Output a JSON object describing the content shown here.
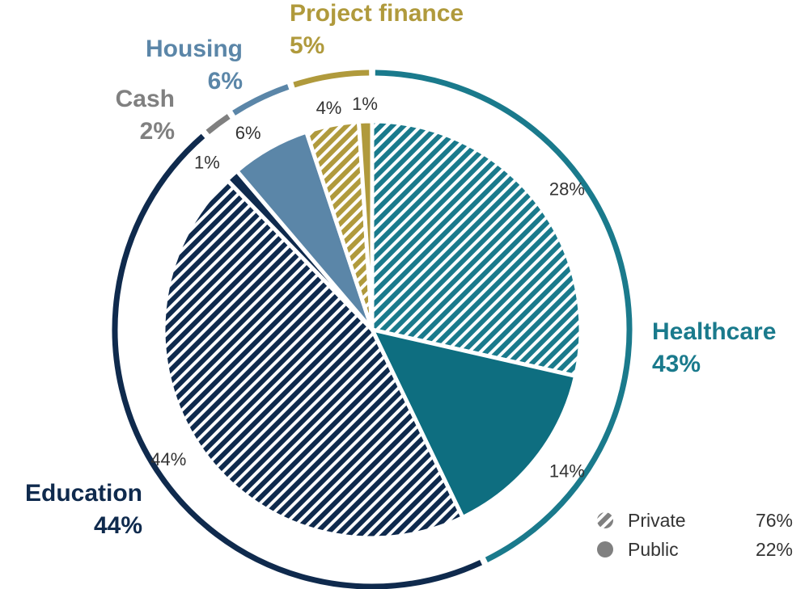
{
  "chart_data": {
    "type": "pie",
    "categories": [
      {
        "id": "healthcare",
        "name": "Healthcare",
        "percent_label": "43%",
        "color": "#1a7a8c"
      },
      {
        "id": "education",
        "name": "Education",
        "percent_label": "44%",
        "color": "#0f2a4d"
      },
      {
        "id": "cash",
        "name": "Cash",
        "percent_label": "2%",
        "color": "#808080"
      },
      {
        "id": "housing",
        "name": "Housing",
        "percent_label": "6%",
        "color": "#5b86a8"
      },
      {
        "id": "project-finance",
        "name": "Project finance",
        "percent_label": "5%",
        "color": "#b09a3c"
      }
    ],
    "slices": [
      {
        "category": "healthcare",
        "type": "private",
        "value": 28,
        "label": "28%",
        "color": "#1a7a8c"
      },
      {
        "category": "healthcare",
        "type": "public",
        "value": 14,
        "label": "14%",
        "color": "#0e6e80"
      },
      {
        "category": "education",
        "type": "private",
        "value": 44,
        "label": "44%",
        "color": "#0f2a4d"
      },
      {
        "category": "education",
        "type": "public",
        "value": 1,
        "label": "1%",
        "color": "#0f2a4d"
      },
      {
        "category": "housing",
        "type": "public",
        "value": 6,
        "label": "6%",
        "color": "#5b86a8"
      },
      {
        "category": "project-finance",
        "type": "private",
        "value": 4,
        "label": "4%",
        "color": "#b09a3c"
      },
      {
        "category": "project-finance",
        "type": "public",
        "value": 1,
        "label": "1%",
        "color": "#b09a3c"
      }
    ],
    "legend": {
      "placement": "bottom-right",
      "items": [
        {
          "id": "private",
          "label": "Private",
          "value": "76%",
          "style": "hatched",
          "color": "#808080"
        },
        {
          "id": "public",
          "label": "Public",
          "value": "22%",
          "style": "solid",
          "color": "#808080"
        }
      ]
    }
  }
}
